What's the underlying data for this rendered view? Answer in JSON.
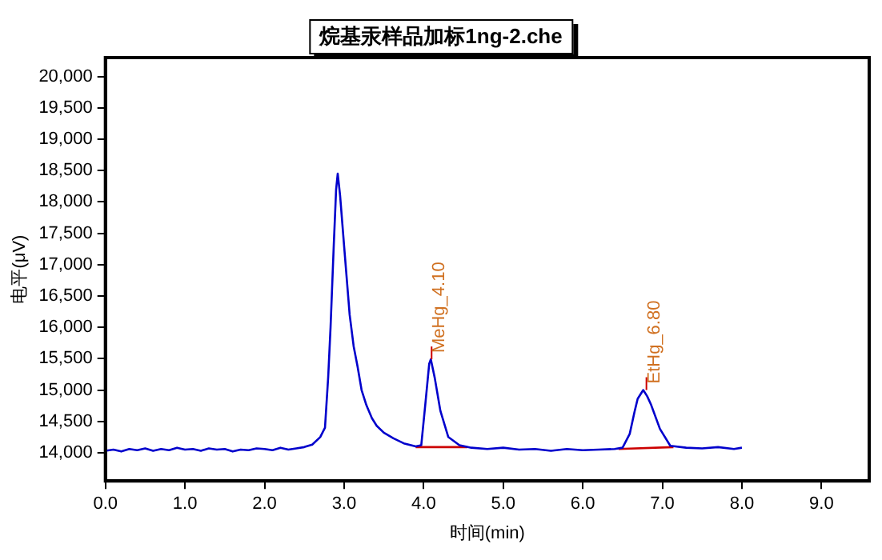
{
  "chart_data": {
    "type": "line",
    "title": "烷基汞样品加标1ng-2.che",
    "xlabel": "时间(min)",
    "ylabel": "电平(μV)",
    "xlim": [
      0,
      9.6
    ],
    "ylim": [
      13550,
      20300
    ],
    "xticks": [
      {
        "value": 0,
        "label": "0.0"
      },
      {
        "value": 1,
        "label": "1.0"
      },
      {
        "value": 2,
        "label": "2.0"
      },
      {
        "value": 3,
        "label": "3.0"
      },
      {
        "value": 4,
        "label": "4.0"
      },
      {
        "value": 5,
        "label": "5.0"
      },
      {
        "value": 6,
        "label": "6.0"
      },
      {
        "value": 7,
        "label": "7.0"
      },
      {
        "value": 8,
        "label": "8.0"
      },
      {
        "value": 9,
        "label": "9.0"
      }
    ],
    "yticks": [
      {
        "value": 14000,
        "label": "14,000"
      },
      {
        "value": 14500,
        "label": "14,500"
      },
      {
        "value": 15000,
        "label": "15,000"
      },
      {
        "value": 15500,
        "label": "15,500"
      },
      {
        "value": 16000,
        "label": "16,000"
      },
      {
        "value": 16500,
        "label": "16,500"
      },
      {
        "value": 17000,
        "label": "17,000"
      },
      {
        "value": 17500,
        "label": "17,500"
      },
      {
        "value": 18000,
        "label": "18,000"
      },
      {
        "value": 18500,
        "label": "18,500"
      },
      {
        "value": 19000,
        "label": "19,000"
      },
      {
        "value": 19500,
        "label": "19,500"
      },
      {
        "value": 20000,
        "label": "20,000"
      }
    ],
    "grid": false,
    "legend": false,
    "marker": "none",
    "line_style": "solid",
    "series": [
      {
        "color": "#0000cc",
        "x": [
          0,
          0.1,
          0.2,
          0.3,
          0.4,
          0.5,
          0.6,
          0.7,
          0.8,
          0.9,
          1.0,
          1.1,
          1.2,
          1.3,
          1.4,
          1.5,
          1.6,
          1.7,
          1.8,
          1.9,
          2.0,
          2.1,
          2.2,
          2.3,
          2.4,
          2.5,
          2.6,
          2.7,
          2.76,
          2.8,
          2.83,
          2.87,
          2.9,
          2.92,
          2.95,
          3.0,
          3.07,
          3.12,
          3.17,
          3.22,
          3.28,
          3.35,
          3.41,
          3.5,
          3.62,
          3.75,
          3.9,
          3.97,
          4.02,
          4.07,
          4.09,
          4.14,
          4.21,
          4.31,
          4.45,
          4.6,
          4.8,
          5.0,
          5.2,
          5.4,
          5.6,
          5.8,
          6.0,
          6.2,
          6.4,
          6.5,
          6.59,
          6.65,
          6.69,
          6.76,
          6.81,
          6.86,
          6.97,
          7.1,
          7.3,
          7.5,
          7.7,
          7.9,
          8.0
        ],
        "values": [
          14030,
          14050,
          14020,
          14060,
          14040,
          14070,
          14030,
          14060,
          14040,
          14080,
          14050,
          14060,
          14030,
          14070,
          14050,
          14060,
          14020,
          14050,
          14040,
          14070,
          14060,
          14040,
          14080,
          14050,
          14070,
          14090,
          14130,
          14250,
          14400,
          15200,
          16000,
          17300,
          18200,
          18450,
          18100,
          17300,
          16200,
          15700,
          15370,
          15000,
          14760,
          14550,
          14430,
          14320,
          14230,
          14150,
          14100,
          14120,
          14760,
          15420,
          15490,
          15190,
          14670,
          14250,
          14120,
          14080,
          14060,
          14080,
          14050,
          14060,
          14030,
          14060,
          14040,
          14050,
          14060,
          14080,
          14300,
          14650,
          14860,
          15000,
          14900,
          14760,
          14380,
          14110,
          14080,
          14070,
          14090,
          14060,
          14080
        ]
      },
      {
        "color": "#cc0000",
        "x": [
          3.9,
          4.55
        ],
        "values": [
          14090,
          14090
        ]
      },
      {
        "color": "#cc0000",
        "x": [
          6.45,
          7.14
        ],
        "values": [
          14060,
          14090
        ]
      }
    ],
    "annotations": [
      {
        "text": "MeHg_4.10",
        "x": 4.1,
        "y": 15490
      },
      {
        "text": "EtHg_6.80",
        "x": 6.8,
        "y": 15000
      }
    ]
  }
}
